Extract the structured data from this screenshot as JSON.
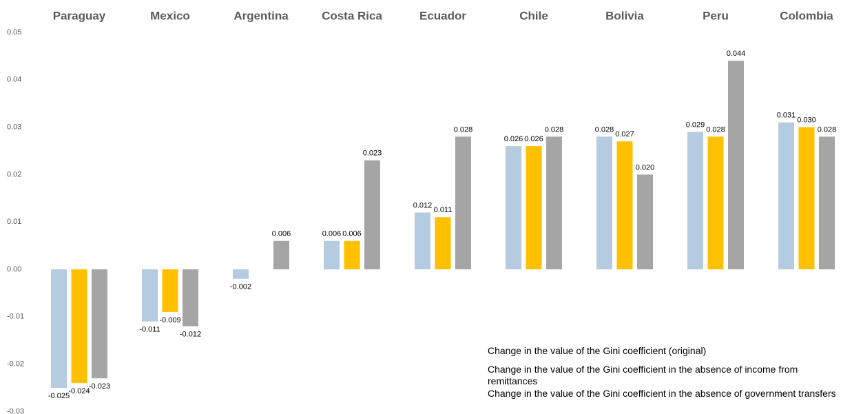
{
  "chart_data": {
    "type": "bar",
    "categories": [
      "Paraguay",
      "Mexico",
      "Argentina",
      "Costa Rica",
      "Ecuador",
      "Chile",
      "Bolivia",
      "Peru",
      "Colombia"
    ],
    "series": [
      {
        "name": "Change in the value of the Gini coefficient (original)",
        "color": "#b4cbe0",
        "values": [
          -0.025,
          -0.011,
          -0.002,
          0.006,
          0.012,
          0.026,
          0.028,
          0.029,
          0.031
        ],
        "value_labels": [
          "-0.025",
          "-0.011",
          "-0.002",
          "0.006",
          "0.012",
          "0.026",
          "0.028",
          "0.029",
          "0.031"
        ]
      },
      {
        "name": "Change in the value of the Gini coefficient in the absence of income from remittances",
        "color": "#ffc000",
        "values": [
          -0.024,
          -0.009,
          null,
          0.006,
          0.011,
          0.026,
          0.027,
          0.028,
          0.03
        ],
        "value_labels": [
          "-0.024",
          "-0.009",
          null,
          "0.006",
          "0.011",
          "0.026",
          "0.027",
          "0.028",
          "0.030"
        ]
      },
      {
        "name": "Change in the value of the Gini coefficient in the absence of government transfers",
        "color": "#a5a5a5",
        "values": [
          -0.023,
          -0.012,
          0.006,
          0.023,
          0.028,
          0.028,
          0.02,
          0.044,
          0.028
        ],
        "value_labels": [
          "-0.023",
          "-0.012",
          "0.006",
          "0.023",
          "0.028",
          "0.028",
          "0.020",
          "0.044",
          "0.028"
        ]
      }
    ],
    "ylim": [
      -0.03,
      0.05
    ],
    "yticks": [
      -0.03,
      -0.02,
      -0.01,
      {
        "value": 0,
        "label": "0.00"
      },
      0.01,
      0.02,
      0.03,
      0.04,
      0.05
    ],
    "grid": false,
    "legend": "bottom-right"
  }
}
